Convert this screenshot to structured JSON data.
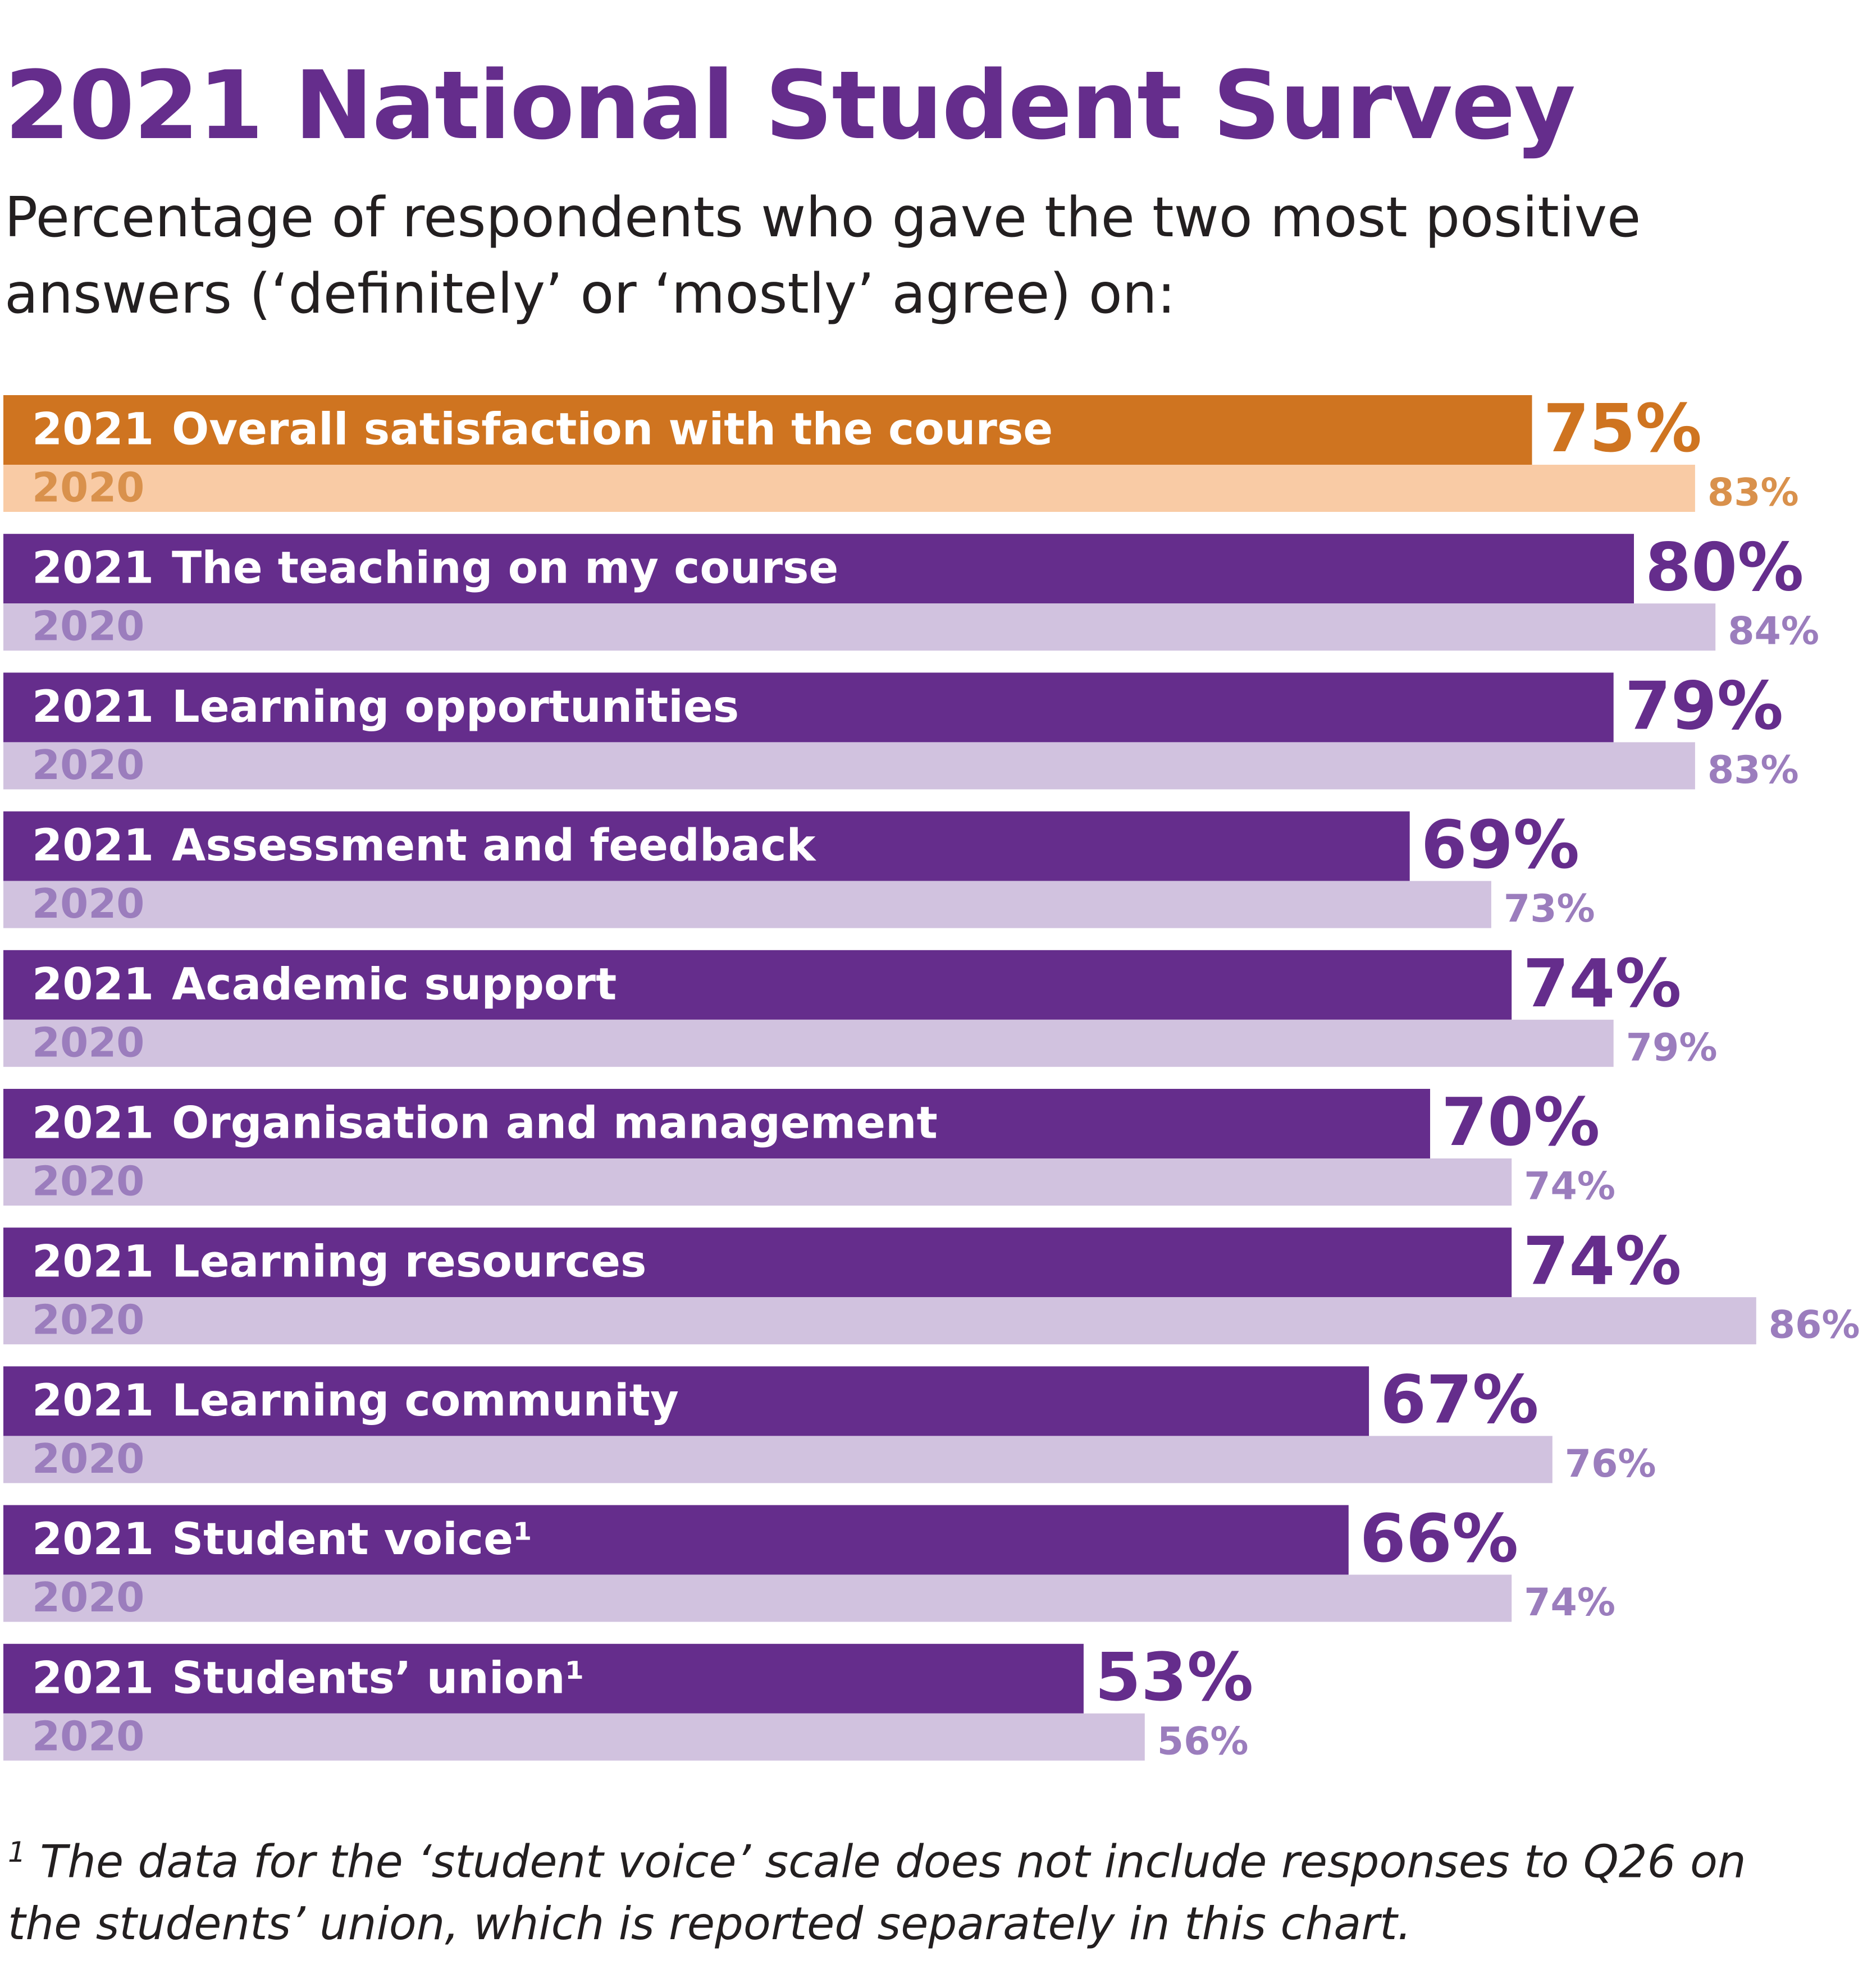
{
  "chart_data": {
    "type": "bar",
    "orientation": "horizontal",
    "title": "2021 National Student Survey",
    "subtitle": "Percentage of respondents who gave the two most positive answers (‘definitely’ or ‘mostly’ agree) on:",
    "categories": [
      "Overall satisfaction with the course",
      "The teaching on my course",
      "Learning opportunities",
      "Assessment and feedback",
      "Academic support",
      "Organisation and management",
      "Learning resources",
      "Learning community",
      "Student voice¹",
      "Students’ union¹"
    ],
    "series": [
      {
        "name": "2021",
        "values": [
          75,
          80,
          79,
          69,
          74,
          70,
          74,
          67,
          66,
          53
        ],
        "value_labels": [
          "75%",
          "80%",
          "79%",
          "69%",
          "74%",
          "70%",
          "74%",
          "67%",
          "66%",
          "53%"
        ],
        "colors": [
          "#cf7420",
          "#652d8c",
          "#652d8c",
          "#652d8c",
          "#652d8c",
          "#652d8c",
          "#652d8c",
          "#652d8c",
          "#652d8c",
          "#652d8c"
        ],
        "label_colors": [
          "#cf7420",
          "#652d8c",
          "#652d8c",
          "#652d8c",
          "#652d8c",
          "#652d8c",
          "#652d8c",
          "#652d8c",
          "#652d8c",
          "#652d8c"
        ]
      },
      {
        "name": "2020",
        "values": [
          83,
          84,
          83,
          73,
          79,
          74,
          86,
          76,
          74,
          56
        ],
        "value_labels": [
          "83%",
          "84%",
          "83%",
          "73%",
          "79%",
          "74%",
          "86%",
          "76%",
          "74%",
          "56%"
        ],
        "colors": [
          "#f9cba5",
          "#d1c2df",
          "#d1c2df",
          "#d1c2df",
          "#d1c2df",
          "#d1c2df",
          "#d1c2df",
          "#d1c2df",
          "#d1c2df",
          "#d1c2df"
        ],
        "label_colors": [
          "#d9914c",
          "#9b7dbd",
          "#9b7dbd",
          "#9b7dbd",
          "#9b7dbd",
          "#9b7dbd",
          "#9b7dbd",
          "#9b7dbd",
          "#9b7dbd",
          "#9b7dbd"
        ]
      }
    ],
    "footnote": {
      "marker": "1",
      "text": "The data for the ‘student voice’ scale does not include responses to Q26 on the students’ union, which is reported separately in this chart."
    }
  }
}
